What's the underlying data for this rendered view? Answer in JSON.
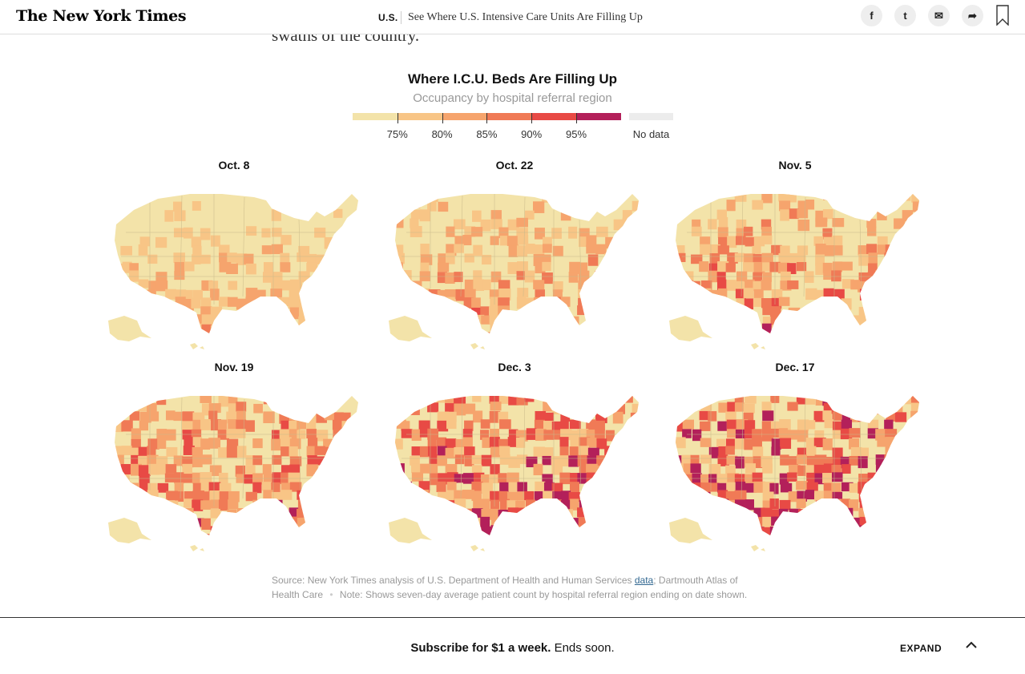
{
  "header": {
    "logo": "The New York Times",
    "section": "U.S.",
    "headline": "See Where U.S. Intensive Care Units Are Filling Up",
    "share_icons": [
      "facebook-icon",
      "twitter-icon",
      "email-icon",
      "share-icon"
    ],
    "facebook_glyph": "f",
    "twitter_glyph": "t",
    "email_glyph": "✉",
    "share_glyph": "➦"
  },
  "article": {
    "lead_fragment": "swaths of the country."
  },
  "chart": {
    "title": "Where I.C.U. Beds Are Filling Up",
    "subtitle": "Occupancy by hospital referral region",
    "legend": {
      "colors": [
        "#f3e3a9",
        "#f8c586",
        "#f6a46d",
        "#f07a56",
        "#e84a45",
        "#b3205a"
      ],
      "ticks": [
        "75%",
        "80%",
        "85%",
        "90%",
        "95%"
      ],
      "no_data_label": "No data",
      "no_data_color": "#ececec"
    },
    "panels": [
      {
        "label": "Oct. 8"
      },
      {
        "label": "Oct. 22"
      },
      {
        "label": "Nov. 5"
      },
      {
        "label": "Nov. 19"
      },
      {
        "label": "Dec. 3"
      },
      {
        "label": "Dec. 17"
      }
    ]
  },
  "source": {
    "prefix": "Source: New York Times analysis of U.S. Department of Health and Human Services ",
    "link": "data",
    "suffix": "; Dartmouth Atlas of Health Care",
    "separator": "•",
    "note": "Note: Shows seven-day average patient count by hospital referral region ending on date shown."
  },
  "subscribe": {
    "bold": "Subscribe for $1 a week.",
    "rest": " Ends soon.",
    "expand": "EXPAND"
  }
}
